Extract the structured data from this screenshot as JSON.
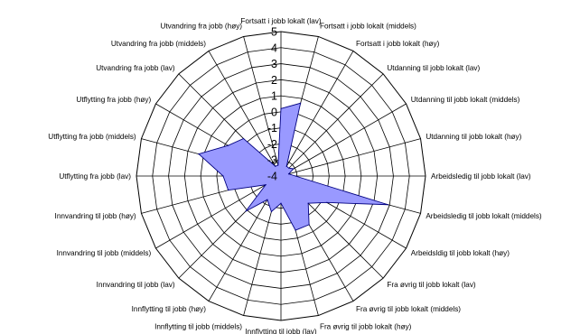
{
  "chart_data": {
    "type": "radar",
    "title": "",
    "categories": [
      "Fortsatt i jobb lokalt (lav)",
      "Fortsatt i jobb lokalt (middels)",
      "Fortsatt i jobb lokalt (høy)",
      "Utdanning til jobb lokalt (lav)",
      "Utdanning til jobb lokalt (middels)",
      "Utdanning til jobb lokalt (høy)",
      "Arbeidsledig til jobb lokalt (lav)",
      "Arbeidsledig til jobb lokalt (middels)",
      "Arbeidsldig til jobb lokalt (høy)",
      "Fra øvrig til jobb lokalt (lav)",
      "Fra øvrig til jobb lokalt (middels)",
      "Fra øvrig til jobb lokalt (høy)",
      "Innflytting til jobb (lav)",
      "Innflytting til jobb (middels)",
      "Innflytting til jobb (høy)",
      "Innvandring til jobb (lav)",
      "Innvandring til jobb (middels)",
      "Innvandring til jobb (høy)",
      "Utflytting fra jobb (lav)",
      "Utflytting fra jobb (middels)",
      "Utflytting fra jobb (høy)",
      "Utvandring fra jobb (lav)",
      "Utvandring fra jobb (middels)",
      "Utvandring fra jobb (høy)"
    ],
    "ticks": [
      "-4",
      "-3",
      "-2",
      "-1",
      "0",
      "1",
      "2",
      "3",
      "4",
      "5"
    ],
    "rlim": [
      -4,
      5
    ],
    "grid": true,
    "series": [
      {
        "color": "#9999ff",
        "values": [
          0.2,
          0.7,
          -3.3,
          -3.3,
          -3.1,
          -3.5,
          -3.1,
          2.9,
          -0.7,
          -1.6,
          -0.5,
          -0.5,
          -2.3,
          -1.7,
          -2.3,
          -0.9,
          -2.9,
          -0.6,
          -0.4,
          1.3,
          -0.2,
          -0.7,
          -3.3,
          -3.3
        ]
      }
    ]
  }
}
